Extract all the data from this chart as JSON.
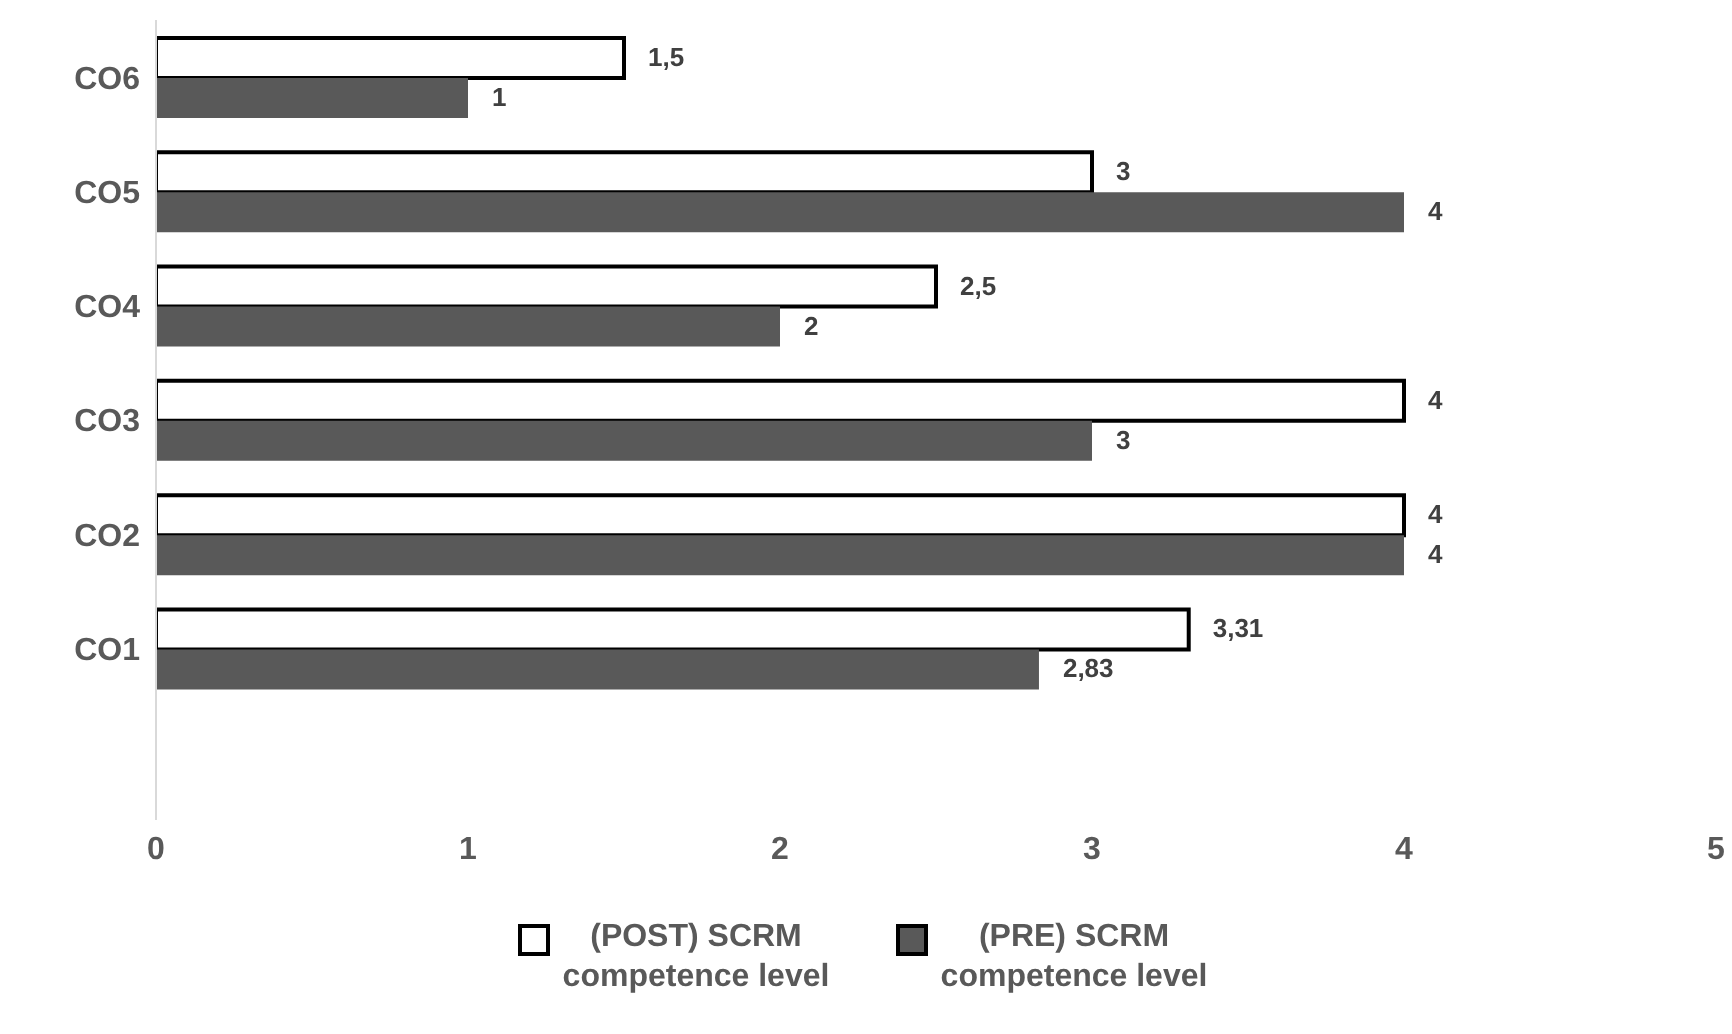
{
  "chart_data": {
    "type": "bar",
    "orientation": "horizontal",
    "categories": [
      "CO6",
      "CO5",
      "CO4",
      "CO3",
      "CO2",
      "CO1",
      null
    ],
    "series": [
      {
        "name": "(POST) SCRM competence level",
        "color": "#ffffff",
        "values": [
          1.5,
          3,
          2.5,
          4,
          4,
          3.31,
          null
        ],
        "value_labels": [
          "1,5",
          "3",
          "2,5",
          "4",
          "4",
          "3,31",
          null
        ]
      },
      {
        "name": "(PRE) SCRM competence level",
        "color": "#595959",
        "values": [
          1,
          4,
          2,
          3,
          4,
          2.83,
          null
        ],
        "value_labels": [
          "1",
          "4",
          "2",
          "3",
          "4",
          "2,83",
          null
        ]
      }
    ],
    "xlim": [
      0,
      5
    ],
    "xticks": [
      0,
      1,
      2,
      3,
      4,
      5
    ],
    "grid": false,
    "legend": "bottom"
  }
}
